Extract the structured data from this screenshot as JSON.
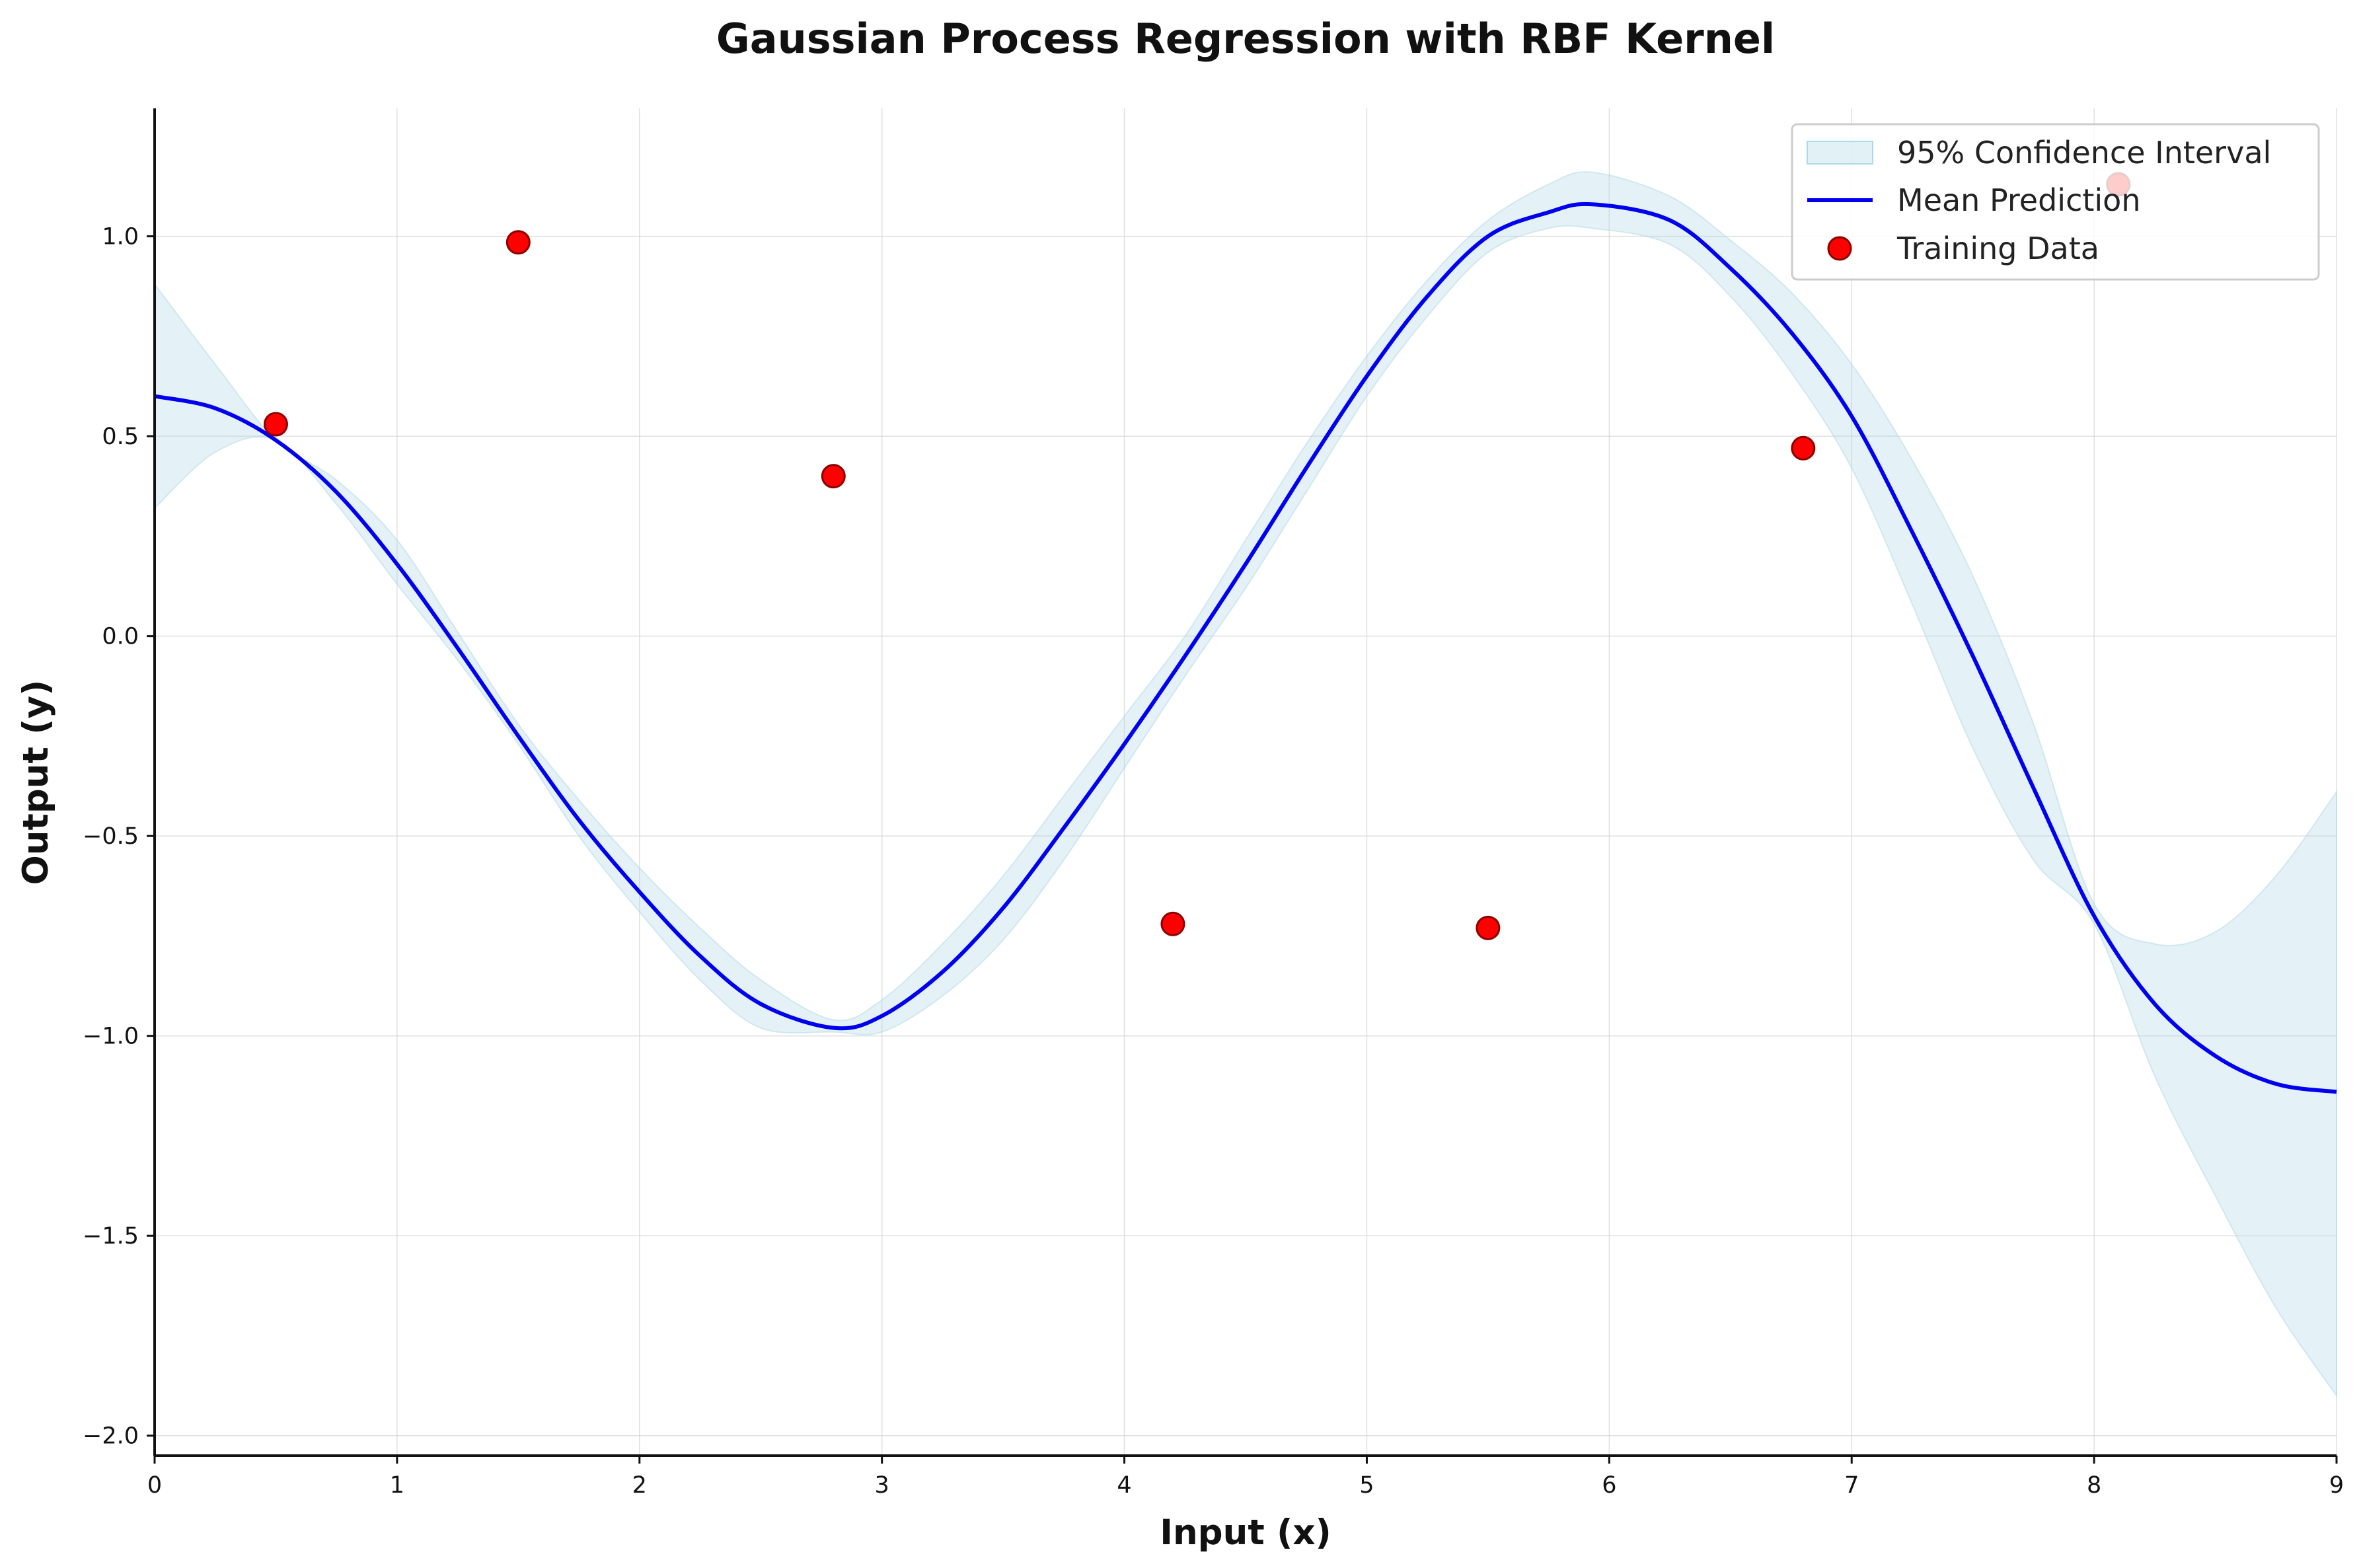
{
  "chart_data": {
    "type": "line",
    "title": "Gaussian Process Regression with RBF Kernel",
    "xlabel": "Input (x)",
    "ylabel": "Output (y)",
    "xlim": [
      0,
      9
    ],
    "ylim": [
      -2.05,
      1.32
    ],
    "xticks": [
      0,
      1,
      2,
      3,
      4,
      5,
      6,
      7,
      8,
      9
    ],
    "xtick_labels": [
      "0",
      "1",
      "2",
      "3",
      "4",
      "5",
      "6",
      "7",
      "8",
      "9"
    ],
    "yticks": [
      -2.0,
      -1.5,
      -1.0,
      -0.5,
      0.0,
      0.5,
      1.0
    ],
    "ytick_labels": [
      "−2.0",
      "−1.5",
      "−1.0",
      "−0.5",
      "0.0",
      "0.5",
      "1.0"
    ],
    "grid": true,
    "legend_position": "top-right",
    "legend": [
      "95% Confidence Interval",
      "Mean Prediction",
      "Training Data"
    ],
    "colors": {
      "mean_line": "#0000ee",
      "band_fill": "#add8e6",
      "points_fill": "#ff0000",
      "points_edge": "#8b0000"
    },
    "series": [
      {
        "name": "Mean Prediction",
        "x": [
          0,
          0.25,
          0.5,
          0.75,
          1.0,
          1.25,
          1.5,
          1.75,
          2.0,
          2.25,
          2.5,
          2.8,
          3.0,
          3.25,
          3.5,
          3.75,
          4.0,
          4.25,
          4.5,
          4.75,
          5.0,
          5.25,
          5.5,
          5.75,
          5.93,
          6.25,
          6.5,
          6.75,
          7.0,
          7.25,
          7.5,
          7.75,
          8.0,
          8.25,
          8.5,
          8.75,
          9.0
        ],
        "y": [
          0.6,
          0.57,
          0.49,
          0.36,
          0.18,
          -0.03,
          -0.25,
          -0.46,
          -0.64,
          -0.8,
          -0.92,
          -0.98,
          -0.95,
          -0.84,
          -0.68,
          -0.48,
          -0.27,
          -0.05,
          0.18,
          0.42,
          0.65,
          0.85,
          1.0,
          1.06,
          1.08,
          1.04,
          0.92,
          0.76,
          0.55,
          0.26,
          -0.05,
          -0.38,
          -0.7,
          -0.92,
          -1.05,
          -1.12,
          -1.14
        ]
      },
      {
        "name": "95% Confidence Interval",
        "x": [
          0,
          0.25,
          0.5,
          0.75,
          1.0,
          1.25,
          1.5,
          1.75,
          2.0,
          2.25,
          2.5,
          2.8,
          3.0,
          3.25,
          3.5,
          3.75,
          4.0,
          4.25,
          4.5,
          4.75,
          5.0,
          5.25,
          5.5,
          5.75,
          5.93,
          6.25,
          6.5,
          6.75,
          7.0,
          7.25,
          7.5,
          7.75,
          8.0,
          8.25,
          8.5,
          8.75,
          9.0
        ],
        "lower": [
          0.32,
          0.46,
          0.49,
          0.33,
          0.13,
          -0.06,
          -0.27,
          -0.5,
          -0.69,
          -0.86,
          -0.98,
          -0.99,
          -0.99,
          -0.9,
          -0.76,
          -0.56,
          -0.33,
          -0.1,
          0.12,
          0.36,
          0.6,
          0.8,
          0.96,
          1.02,
          1.02,
          0.98,
          0.85,
          0.66,
          0.42,
          0.08,
          -0.28,
          -0.56,
          -0.72,
          -1.1,
          -1.4,
          -1.68,
          -1.9
        ],
        "upper": [
          0.88,
          0.68,
          0.49,
          0.39,
          0.24,
          0.01,
          -0.22,
          -0.41,
          -0.58,
          -0.73,
          -0.86,
          -0.96,
          -0.91,
          -0.77,
          -0.6,
          -0.4,
          -0.2,
          0.0,
          0.24,
          0.48,
          0.7,
          0.89,
          1.04,
          1.13,
          1.16,
          1.1,
          0.99,
          0.86,
          0.68,
          0.44,
          0.15,
          -0.22,
          -0.67,
          -0.77,
          -0.74,
          -0.6,
          -0.39
        ]
      },
      {
        "name": "Training Data",
        "x": [
          0.5,
          1.5,
          2.8,
          4.2,
          5.5,
          6.8,
          8.1
        ],
        "y": [
          0.53,
          0.985,
          0.4,
          -0.72,
          -0.73,
          0.47,
          1.13
        ]
      }
    ]
  }
}
